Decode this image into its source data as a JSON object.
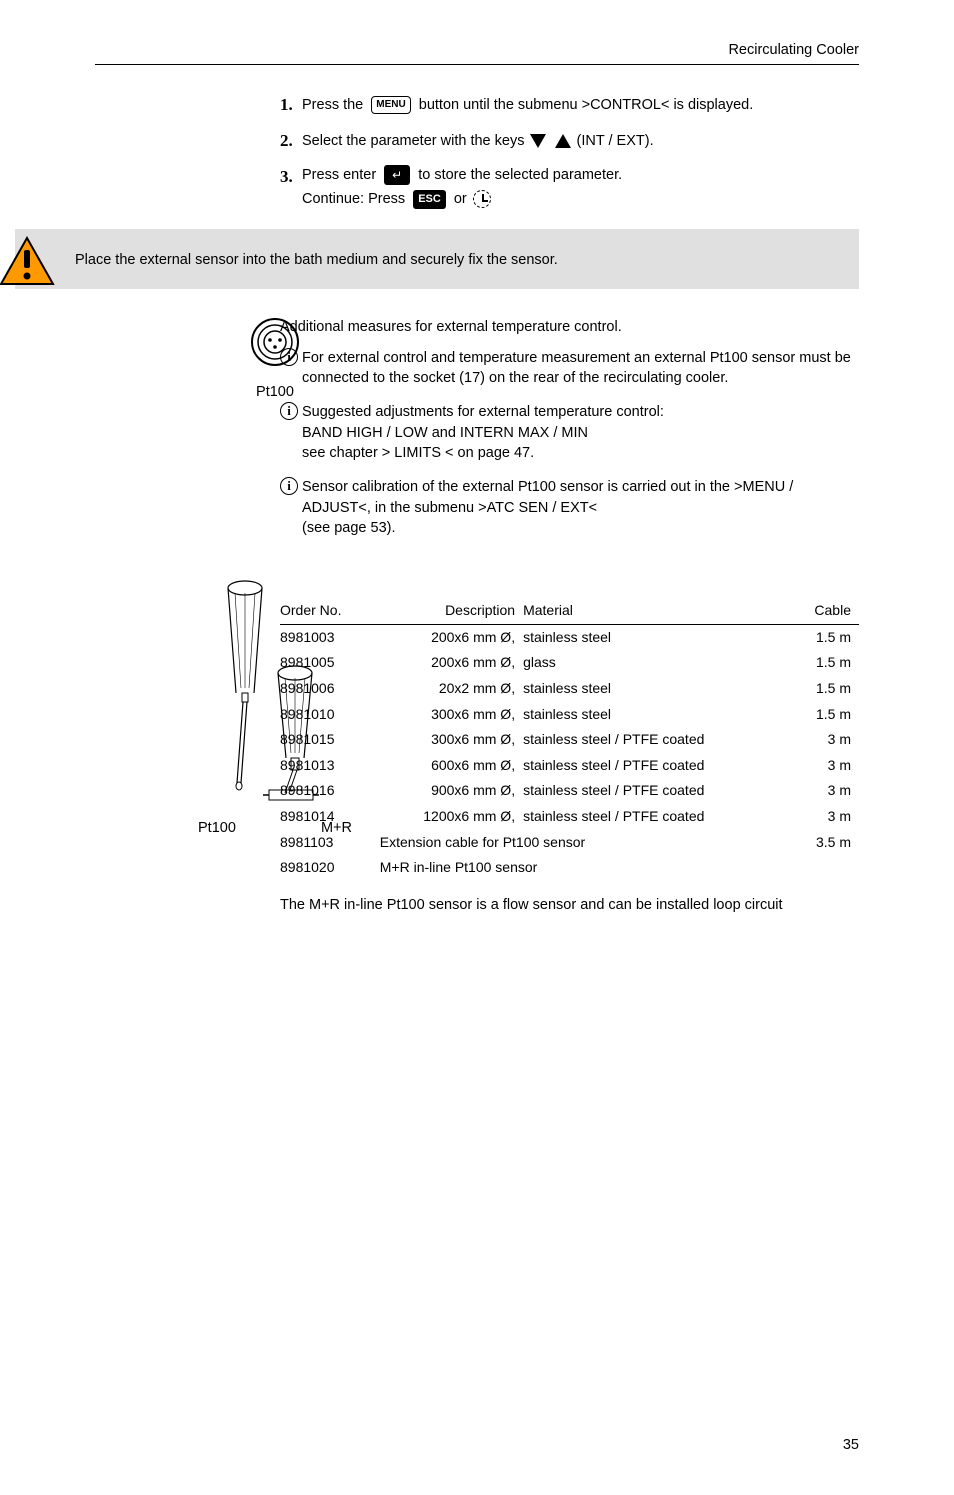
{
  "header": "Recirculating Cooler",
  "steps": {
    "s1_pre": "Press the ",
    "s1_key": "MENU",
    "s1_post": " button until the submenu >CONTROL< is displayed.",
    "s2_pre": "Select the parameter with the keys ",
    "s2_post": " (INT / EXT).",
    "s3_pre": "Press enter ",
    "s3_mid": " to store the selected parameter.",
    "s3_continue": "Continue: Press ",
    "s3_esc": "ESC",
    "s3_or": " or "
  },
  "warning_text": "Place the external sensor into the bath medium and securely fix the sensor.",
  "socket_label": "Pt100",
  "additional_title": "Additional measures for external temperature control.",
  "info1": "For external control and temperature measurement an external Pt100 sensor must be connected to the socket (17) on the rear of the recirculating cooler.",
  "info2_l1": "Suggested adjustments for external temperature control:",
  "info2_l2": "BAND HIGH / LOW and INTERN MAX / MIN",
  "info2_l3": "see chapter > LIMITS < on page 47.",
  "info3_l1": "Sensor calibration of the external Pt100 sensor is carried out in the >MENU / ADJUST<, in the submenu >ATC SEN / EXT<",
  "info3_l2": "(see page 53).",
  "table": {
    "h1": "Order No.",
    "h2": "Description",
    "h3": "Material",
    "h4": "Cable",
    "rows": [
      {
        "n": "8981003",
        "d": "200x6 mm Ø,",
        "m": "stainless steel",
        "c": "1.5 m"
      },
      {
        "n": "8981005",
        "d": "200x6 mm Ø,",
        "m": "glass",
        "c": "1.5 m"
      },
      {
        "n": "8981006",
        "d": "20x2 mm Ø,",
        "m": "stainless steel",
        "c": "1.5 m"
      },
      {
        "n": "8981010",
        "d": "300x6 mm Ø,",
        "m": "stainless steel",
        "c": "1.5 m"
      },
      {
        "n": "8981015",
        "d": "300x6 mm Ø,",
        "m": "stainless steel / PTFE coated",
        "c": "3 m"
      },
      {
        "n": "8981013",
        "d": "600x6 mm Ø,",
        "m": "stainless steel / PTFE coated",
        "c": "3 m"
      },
      {
        "n": "8981016",
        "d": "900x6 mm Ø,",
        "m": "stainless steel / PTFE coated",
        "c": "3 m"
      },
      {
        "n": "8981014",
        "d": "1200x6 mm Ø,",
        "m": "stainless steel / PTFE coated",
        "c": "3 m"
      },
      {
        "n": "8981103",
        "d": "Extension cable for Pt100 sensor",
        "m": "",
        "c": "3.5 m"
      },
      {
        "n": "8981020",
        "d": "M+R in-line Pt100 sensor",
        "m": "",
        "c": ""
      }
    ]
  },
  "sensor_left": "Pt100",
  "sensor_right": "M+R",
  "footer_text": "The M+R in-line Pt100 sensor is a flow sensor and can be installed loop circuit",
  "page_num": "35"
}
